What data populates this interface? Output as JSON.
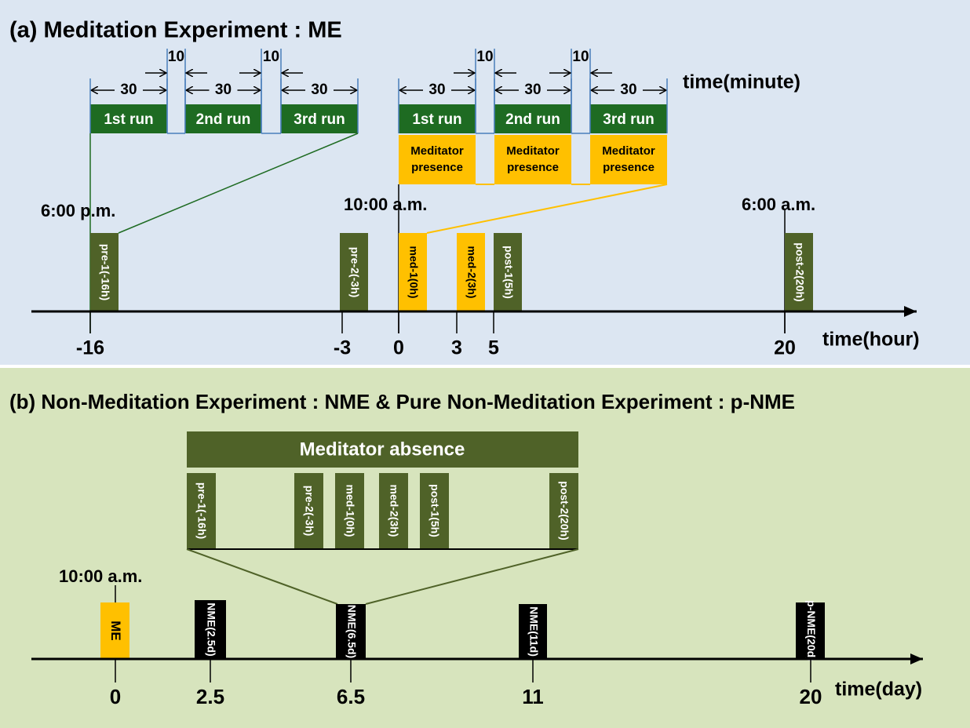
{
  "panel_a": {
    "title": "(a) Meditation Experiment : ME",
    "minute_unit": "time(minute)",
    "hour_unit": "time(hour)",
    "clock_labels": [
      "6:00 p.m.",
      "10:00 a.m.",
      "6:00 a.m."
    ],
    "protocols": [
      {
        "runs": [
          "1st  run",
          "2nd run",
          "3rd run"
        ],
        "durations": [
          "30",
          "10",
          "30",
          "10",
          "30"
        ]
      },
      {
        "runs": [
          "1st  run",
          "2nd run",
          "3rd run"
        ],
        "durations": [
          "30",
          "10",
          "30",
          "10",
          "30"
        ],
        "conditions": [
          "Meditator presence",
          "Meditator presence",
          "Meditator presence"
        ]
      }
    ],
    "sessions": [
      "pre-1(-16h)",
      "pre-2(-3h)",
      "med-1(0h)",
      "med-2(3h)",
      "post-1(5h)",
      "post-2(20h)"
    ],
    "axis_labels": [
      "-16",
      "-3",
      "0",
      "3",
      "5",
      "20"
    ]
  },
  "panel_b": {
    "title": "(b) Non-Meditation Experiment : NME  &  Pure Non-Meditation Experiment : p-NME",
    "condition": "Meditator absence",
    "sessions": [
      "pre-1(-16h)",
      "pre-2(-3h)",
      "med-1(0h)",
      "med-2(3h)",
      "post-1(5h)",
      "post-2(20h)"
    ],
    "clock_label": "10:00 a.m.",
    "experiments": [
      "ME",
      "NME(2.5d)",
      "NME(6.5d)",
      "NME(11d)",
      "p-NME(20d)"
    ],
    "axis_labels": [
      "0",
      "2.5",
      "6.5",
      "11",
      "20"
    ],
    "day_unit": "time(day)"
  }
}
